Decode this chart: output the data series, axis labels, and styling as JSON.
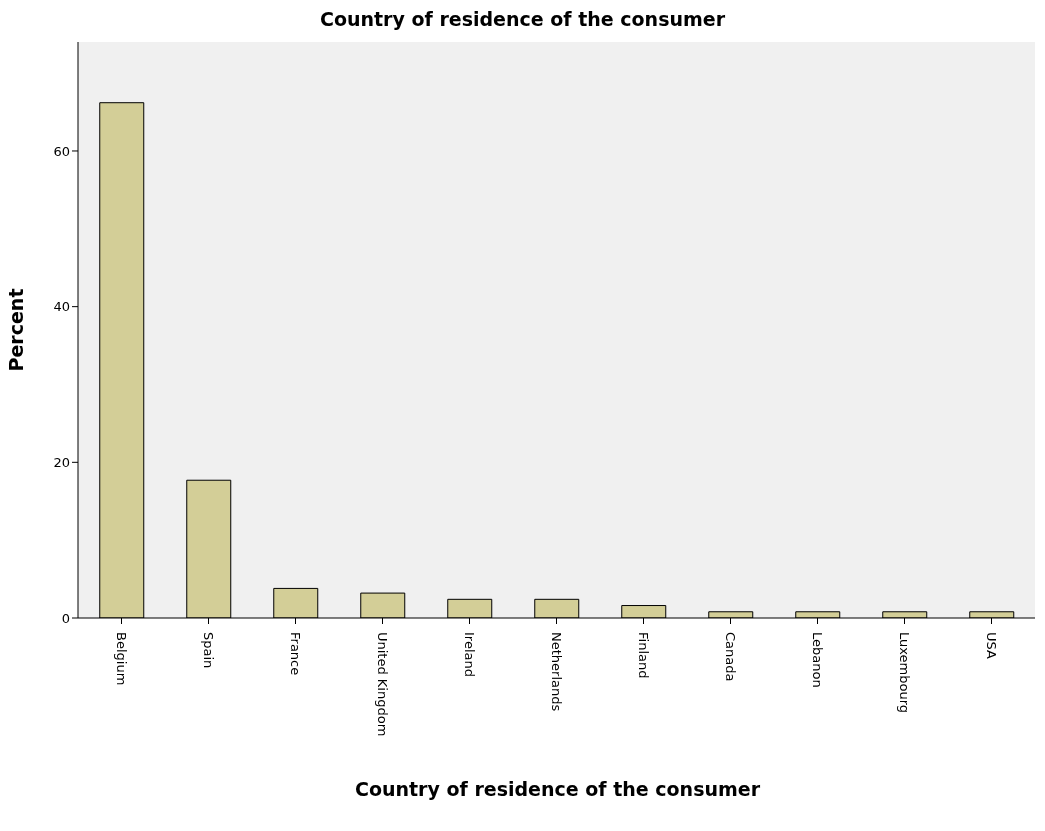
{
  "chart_data": {
    "type": "bar",
    "title": "Country of residence of the consumer",
    "xlabel": "Country of residence of the consumer",
    "ylabel": "Percent",
    "categories": [
      "Belgium",
      "Spain",
      "France",
      "United Kingdom",
      "Ireland",
      "Netherlands",
      "Finland",
      "Canada",
      "Lebanon",
      "Luxembourg",
      "USA"
    ],
    "values": [
      66.2,
      17.7,
      3.8,
      3.2,
      2.4,
      2.4,
      1.6,
      0.8,
      0.8,
      0.8,
      0.8
    ],
    "color": "#d3ce97",
    "ylim": [
      0,
      74
    ],
    "yticks": [
      0,
      20,
      40,
      60
    ],
    "grid": false
  }
}
